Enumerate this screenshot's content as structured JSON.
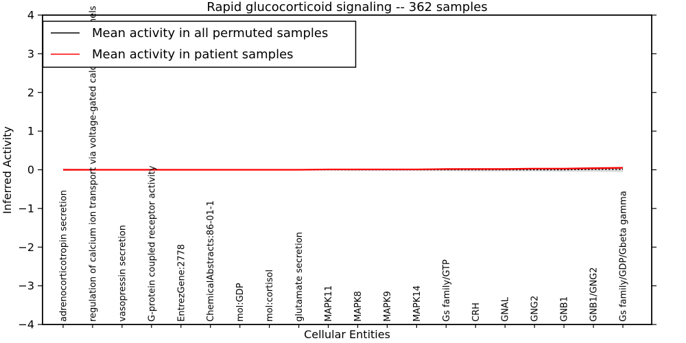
{
  "title": "Rapid glucocorticoid signaling -- 362 samples",
  "axes": {
    "ylabel": "Inferred Activity",
    "xlabel": "Cellular Entities",
    "yticks": [
      "4",
      "3",
      "2",
      "1",
      "0",
      "−1",
      "−2",
      "−3",
      "−4"
    ],
    "ymin": -4,
    "ymax": 4
  },
  "legend": {
    "items": [
      {
        "label": "Mean activity in all permuted samples",
        "color": "#000000"
      },
      {
        "label": "Mean activity in patient samples",
        "color": "#ff0000"
      }
    ]
  },
  "chart_data": {
    "type": "line",
    "title": "Rapid glucocorticoid signaling -- 362 samples",
    "xlabel": "Cellular Entities",
    "ylabel": "Inferred Activity",
    "ylim": [
      -4,
      4
    ],
    "grid": false,
    "legend_position": "upper left",
    "categories": [
      "adrenocorticotropin secretion",
      "regulation of calcium ion transport via voltage-gated calcium channels",
      "vasopressin secretion",
      "G-protein coupled receptor activity",
      "EntrezGene:2778",
      "ChemicalAbstracts:86-01-1",
      "mol:GDP",
      "mol:cortisol",
      "glutamate secretion",
      "MAPK11",
      "MAPK8",
      "MAPK9",
      "MAPK14",
      "Gs family/GTP",
      "CRH",
      "GNAL",
      "GNG2",
      "GNB1",
      "GNB1/GNG2",
      "Gs family/GDP/Gbeta gamma"
    ],
    "series": [
      {
        "name": "Mean activity in all permuted samples",
        "color": "#000000",
        "style": "dotted",
        "values": [
          0.0,
          0.0,
          0.0,
          0.0,
          0.0,
          0.0,
          0.0,
          0.0,
          0.0,
          0.0,
          0.0,
          0.0,
          0.0,
          0.0,
          0.0,
          0.0,
          0.0,
          0.0,
          0.01,
          0.01
        ]
      },
      {
        "name": "Mean activity in patient samples",
        "color": "#ff0000",
        "style": "solid",
        "values": [
          0.0,
          0.0,
          0.0,
          0.0,
          0.0,
          0.0,
          0.0,
          0.0,
          0.0,
          0.01,
          0.01,
          0.01,
          0.01,
          0.02,
          0.02,
          0.02,
          0.03,
          0.03,
          0.04,
          0.05
        ]
      }
    ],
    "bands": [
      {
        "series": "Mean activity in all permuted samples",
        "color": "rgba(130,130,130,0.28)",
        "half_widths": [
          0.03,
          0.02,
          0.02,
          0.02,
          0.02,
          0.02,
          0.02,
          0.02,
          0.02,
          0.02,
          0.03,
          0.03,
          0.03,
          0.03,
          0.04,
          0.04,
          0.04,
          0.05,
          0.06,
          0.07
        ]
      },
      {
        "series": "Mean activity in patient samples",
        "color": "rgba(255,0,0,0.18)",
        "half_widths": [
          0.02,
          0.01,
          0.01,
          0.01,
          0.01,
          0.01,
          0.01,
          0.01,
          0.01,
          0.01,
          0.01,
          0.01,
          0.01,
          0.02,
          0.02,
          0.02,
          0.02,
          0.02,
          0.03,
          0.03
        ]
      }
    ]
  }
}
